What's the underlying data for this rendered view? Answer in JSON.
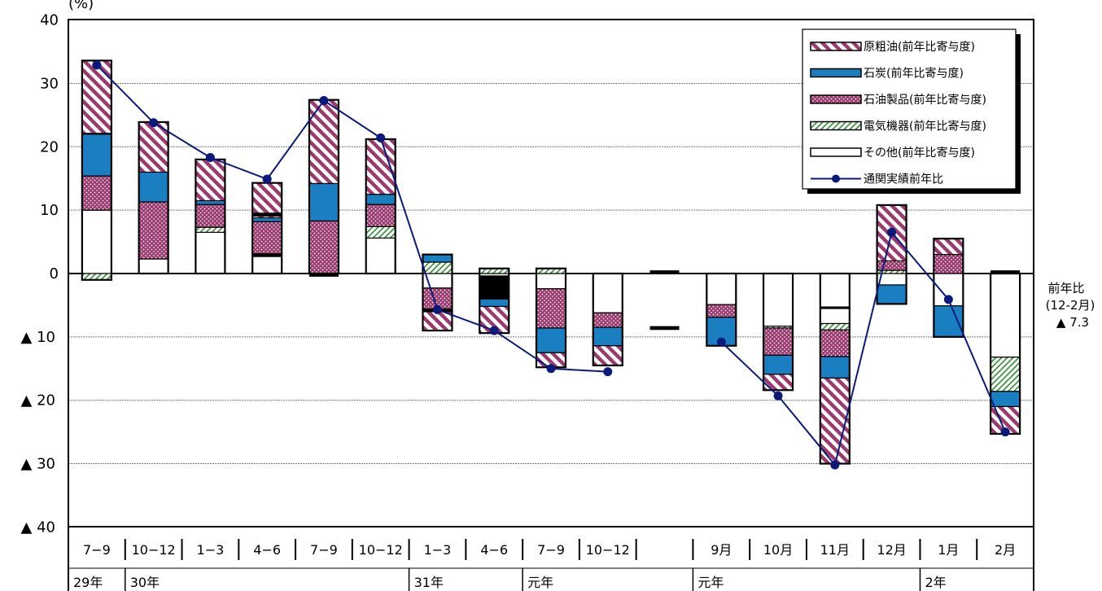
{
  "chart_data": {
    "type": "bar",
    "unit_label": "(%)",
    "ylim": [
      -40,
      40
    ],
    "y_ticks": [
      40,
      30,
      20,
      10,
      0,
      -10,
      -20,
      -30,
      -40
    ],
    "y_tick_labels": [
      "40",
      "30",
      "20",
      "10",
      "0",
      "▲ 10",
      "▲ 20",
      "▲ 30",
      "▲ 40"
    ],
    "categories": [
      "7-9",
      "10-12",
      "1-3",
      "4-6",
      "7-9",
      "10-12",
      "1-3",
      "4-6",
      "7-9",
      "10-12",
      "",
      "9月",
      "10月",
      "11月",
      "12月",
      "1月",
      "2月"
    ],
    "year_groups": [
      {
        "label": "29年",
        "start": 0,
        "end": 1
      },
      {
        "label": "30年",
        "start": 1,
        "end": 6
      },
      {
        "label": "31年",
        "start": 6,
        "end": 8
      },
      {
        "label": "元年",
        "start": 8,
        "end": 11
      },
      {
        "label": "元年",
        "start": 11,
        "end": 15
      },
      {
        "label": "2年",
        "start": 15,
        "end": 17
      }
    ],
    "series": [
      {
        "name": "原粗油(前年比寄与度)",
        "key": "crude",
        "values": [
          11.6,
          7.9,
          6.5,
          5.5,
          13.2,
          8.7,
          -3.3,
          -4.2,
          -2.3,
          -3.1,
          null,
          0,
          -2.5,
          -13.5,
          8.8,
          2.5,
          -4.3
        ]
      },
      {
        "name": "石炭(前年比寄与度)",
        "key": "coal",
        "values": [
          6.6,
          4.7,
          0.6,
          0.6,
          5.9,
          1.6,
          1.2,
          -1.3,
          -3.9,
          -2.9,
          null,
          -4.5,
          -3.0,
          -3.4,
          -3.0,
          -4.9,
          -2.4
        ]
      },
      {
        "name": "石油製品(前年比寄与度)",
        "key": "products",
        "values": [
          5.4,
          9.0,
          3.6,
          5.4,
          8.3,
          3.5,
          -3.4,
          -3.3,
          -6.2,
          -2.3,
          null,
          -2.0,
          -4.3,
          -4.2,
          1.5,
          3.0,
          null
        ]
      },
      {
        "name": "電気機器(前年比寄与度)",
        "key": "elec",
        "values": [
          -1.0,
          null,
          0.8,
          null,
          null,
          1.8,
          1.8,
          0.8,
          0.8,
          null,
          null,
          null,
          -0.3,
          -1.0,
          0.5,
          null,
          -5.4
        ]
      },
      {
        "name": "その他(前年比寄与度)",
        "key": "other",
        "values": [
          10.0,
          2.3,
          6.5,
          2.8,
          null,
          5.6,
          -2.3,
          -0.6,
          -2.4,
          -6.2,
          null,
          -4.9,
          -8.3,
          -7.9,
          -1.8,
          -5.1,
          -13.2
        ]
      }
    ],
    "black_segments": [
      {
        "index": 0,
        "from": 22.0,
        "to": 22.2
      },
      {
        "index": 3,
        "from": 9.0,
        "to": 9.6
      },
      {
        "index": 3,
        "from": 2.6,
        "to": 3.2
      },
      {
        "index": 4,
        "from": -0.5,
        "to": 0
      },
      {
        "index": 6,
        "from": -5.5,
        "to": -6.1
      },
      {
        "index": 7,
        "from": -4.1,
        "to": -0.3
      },
      {
        "index": 10,
        "from": 0,
        "to": 0.5
      },
      {
        "index": 10,
        "from": -8.3,
        "to": -8.9
      },
      {
        "index": 13,
        "from": -5.2,
        "to": -5.6
      },
      {
        "index": 16,
        "from": 0,
        "to": 0.5
      }
    ],
    "line": {
      "name": "通関実績前年比",
      "values": [
        32.9,
        23.8,
        18.3,
        14.9,
        27.3,
        21.4,
        -5.7,
        -9.0,
        -15.0,
        -15.5,
        null,
        -10.8,
        -19.3,
        -30.2,
        6.5,
        -4.1,
        -25.0
      ]
    },
    "side_note": {
      "line1": "前年比",
      "line2": "(12-2月)",
      "line3": "▲ 7.3"
    },
    "grid": true,
    "legend_position": "top-right"
  },
  "colors": {
    "crude_fill": "#ffffff",
    "crude_stripe": "#9b3a6e",
    "coal": "#1a7fc0",
    "products_fill": "#9b3a6e",
    "products_dot": "#ffffff",
    "elec_fill": "#ffffff",
    "elec_stripe": "#2e8b2e",
    "line": "#0a1a7a"
  }
}
